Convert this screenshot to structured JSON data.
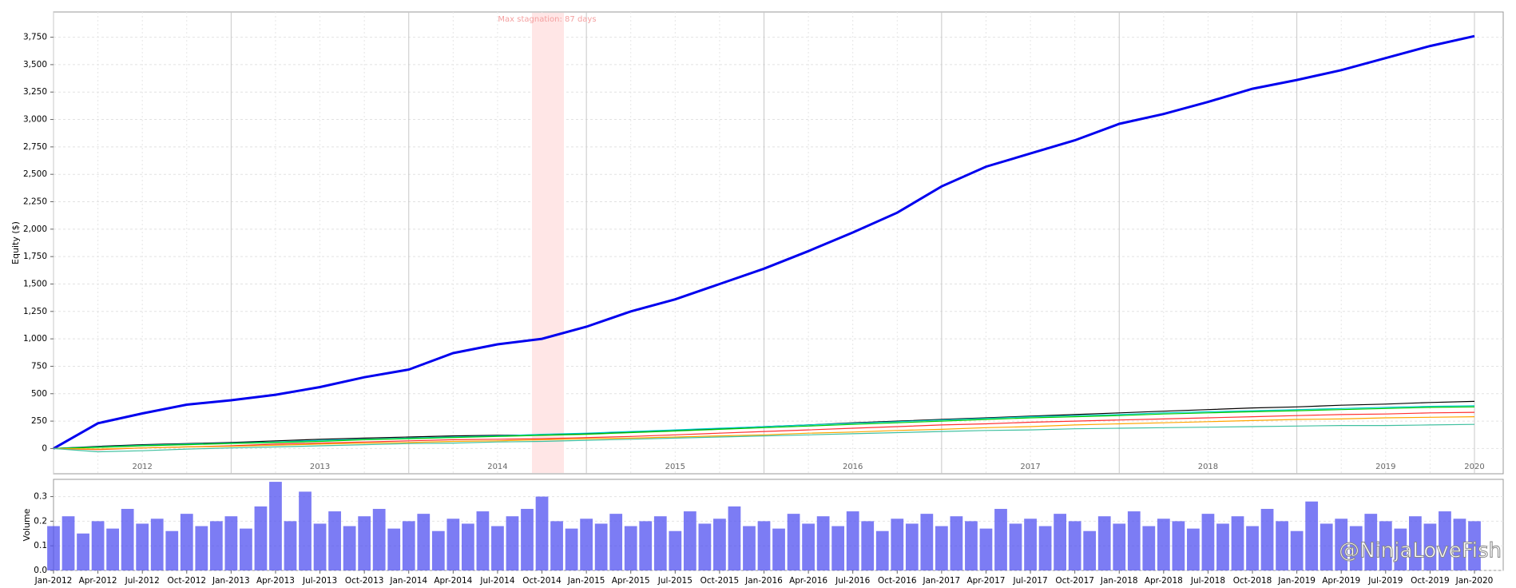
{
  "chart_data": [
    {
      "type": "line",
      "y_label": "Equity ($)",
      "annotation": "Max stagnation: 87 days",
      "grid": true,
      "categories": [
        null,
        null,
        "2012",
        null,
        null,
        null,
        "2013",
        null,
        null,
        null,
        "2014",
        null,
        null,
        null,
        "2015",
        null,
        null,
        null,
        "2016",
        null,
        null,
        null,
        "2017",
        null,
        null,
        null,
        "2018",
        null,
        null,
        null,
        "2019",
        null,
        "2020"
      ],
      "ylim": [
        -230,
        3980
      ],
      "yticks": [
        0,
        250,
        500,
        750,
        {
          "value": 1000,
          "label": "1,000"
        },
        {
          "value": 1250,
          "label": "1,250"
        },
        {
          "value": 1500,
          "label": "1,500"
        },
        {
          "value": 1750,
          "label": "1,750"
        },
        {
          "value": 2000,
          "label": "2,000"
        },
        {
          "value": 2250,
          "label": "2,250"
        },
        {
          "value": 2500,
          "label": "2,500"
        },
        {
          "value": 2750,
          "label": "2,750"
        },
        {
          "value": 3000,
          "label": "3,000"
        },
        {
          "value": 3250,
          "label": "3,250"
        },
        {
          "value": 3500,
          "label": "3,500"
        },
        {
          "value": 3750,
          "label": "3,750"
        }
      ],
      "series": [
        {
          "color": "#0000ee",
          "values": [
            0,
            230,
            320,
            400,
            440,
            490,
            560,
            650,
            720,
            870,
            950,
            1000,
            1110,
            1250,
            1360,
            1500,
            1640,
            1800,
            1970,
            2150,
            2390,
            2570,
            2690,
            2810,
            2960,
            3050,
            3160,
            3280,
            3360,
            3450,
            3560,
            3670,
            3760
          ]
        },
        {
          "color": "#000000",
          "values": [
            0,
            20,
            35,
            45,
            55,
            70,
            85,
            95,
            105,
            115,
            120,
            125,
            135,
            150,
            165,
            180,
            200,
            215,
            235,
            250,
            265,
            280,
            295,
            310,
            325,
            340,
            355,
            370,
            380,
            395,
            405,
            420,
            430
          ]
        },
        {
          "color": "#00cccc",
          "values": [
            0,
            15,
            30,
            40,
            50,
            60,
            75,
            85,
            95,
            105,
            115,
            130,
            140,
            155,
            170,
            185,
            200,
            215,
            230,
            245,
            260,
            275,
            290,
            300,
            310,
            325,
            335,
            345,
            355,
            365,
            375,
            385,
            390
          ]
        },
        {
          "color": "#00cc00",
          "values": [
            0,
            10,
            25,
            35,
            45,
            55,
            65,
            80,
            90,
            100,
            110,
            120,
            130,
            145,
            160,
            175,
            190,
            205,
            220,
            235,
            250,
            265,
            280,
            290,
            300,
            315,
            325,
            335,
            345,
            355,
            365,
            375,
            380
          ]
        },
        {
          "color": "#ff3030",
          "values": [
            0,
            -10,
            5,
            15,
            25,
            40,
            50,
            60,
            70,
            80,
            85,
            90,
            100,
            110,
            125,
            140,
            155,
            170,
            185,
            200,
            215,
            225,
            240,
            250,
            260,
            270,
            280,
            290,
            300,
            310,
            315,
            325,
            330
          ]
        },
        {
          "color": "#ffa500",
          "values": [
            0,
            -5,
            5,
            15,
            20,
            30,
            40,
            50,
            55,
            65,
            70,
            80,
            90,
            95,
            105,
            115,
            125,
            140,
            150,
            165,
            175,
            190,
            200,
            215,
            225,
            235,
            245,
            255,
            265,
            270,
            280,
            285,
            290
          ]
        },
        {
          "color": "#40c0a0",
          "values": [
            0,
            -30,
            -20,
            -5,
            5,
            15,
            25,
            35,
            45,
            50,
            60,
            65,
            75,
            85,
            95,
            105,
            115,
            125,
            135,
            145,
            155,
            165,
            170,
            180,
            185,
            190,
            195,
            200,
            205,
            210,
            210,
            215,
            220
          ]
        }
      ]
    },
    {
      "type": "bar",
      "y_label": "Volume",
      "color": "#5050f0",
      "grid": true,
      "categories": [
        "Jan-2012",
        null,
        null,
        "Apr-2012",
        null,
        null,
        "Jul-2012",
        null,
        null,
        "Oct-2012",
        null,
        null,
        "Jan-2013",
        null,
        null,
        "Apr-2013",
        null,
        null,
        "Jul-2013",
        null,
        null,
        "Oct-2013",
        null,
        null,
        "Jan-2014",
        null,
        null,
        "Apr-2014",
        null,
        null,
        "Jul-2014",
        null,
        null,
        "Oct-2014",
        null,
        null,
        "Jan-2015",
        null,
        null,
        "Apr-2015",
        null,
        null,
        "Jul-2015",
        null,
        null,
        "Oct-2015",
        null,
        null,
        "Jan-2016",
        null,
        null,
        "Apr-2016",
        null,
        null,
        "Jul-2016",
        null,
        null,
        "Oct-2016",
        null,
        null,
        "Jan-2017",
        null,
        null,
        "Apr-2017",
        null,
        null,
        "Jul-2017",
        null,
        null,
        "Oct-2017",
        null,
        null,
        "Jan-2018",
        null,
        null,
        "Apr-2018",
        null,
        null,
        "Jul-2018",
        null,
        null,
        "Oct-2018",
        null,
        null,
        "Jan-2019",
        null,
        null,
        "Apr-2019",
        null,
        null,
        "Jul-2019",
        null,
        null,
        "Oct-2019",
        null,
        null,
        "Jan-2020"
      ],
      "values": [
        0.18,
        0.22,
        0.15,
        0.2,
        0.17,
        0.25,
        0.19,
        0.21,
        0.16,
        0.23,
        0.18,
        0.2,
        0.22,
        0.17,
        0.26,
        0.36,
        0.2,
        0.32,
        0.19,
        0.24,
        0.18,
        0.22,
        0.25,
        0.17,
        0.2,
        0.23,
        0.16,
        0.21,
        0.19,
        0.24,
        0.18,
        0.22,
        0.25,
        0.3,
        0.2,
        0.17,
        0.21,
        0.19,
        0.23,
        0.18,
        0.2,
        0.22,
        0.16,
        0.24,
        0.19,
        0.21,
        0.26,
        0.18,
        0.2,
        0.17,
        0.23,
        0.19,
        0.22,
        0.18,
        0.24,
        0.2,
        0.16,
        0.21,
        0.19,
        0.23,
        0.18,
        0.22,
        0.2,
        0.17,
        0.25,
        0.19,
        0.21,
        0.18,
        0.23,
        0.2,
        0.16,
        0.22,
        0.19,
        0.24,
        0.18,
        0.21,
        0.2,
        0.17,
        0.23,
        0.19,
        0.22,
        0.18,
        0.25,
        0.2,
        0.16,
        0.28,
        0.19,
        0.21,
        0.18,
        0.23,
        0.2,
        0.17,
        0.22,
        0.19,
        0.24,
        0.21,
        0.2
      ],
      "ylim": [
        0,
        0.37
      ],
      "yticks": [
        {
          "value": 0,
          "label": "0.0"
        },
        0.1,
        0.2,
        0.3
      ]
    }
  ],
  "watermark": "@NinjaLoveFish"
}
